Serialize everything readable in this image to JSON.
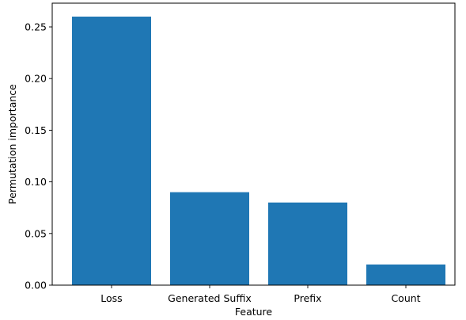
{
  "chart_data": {
    "type": "bar",
    "categories": [
      "Loss",
      "Generated Suffix",
      "Prefix",
      "Count"
    ],
    "values": [
      0.26,
      0.09,
      0.08,
      0.02
    ],
    "xlabel": "Feature",
    "ylabel": "Permutation importance",
    "ylim": [
      0,
      0.273
    ],
    "yticks": [
      "0.00",
      "0.05",
      "0.10",
      "0.15",
      "0.20",
      "0.25"
    ],
    "bar_color": "#1f77b4",
    "grid": false,
    "legend": "none"
  }
}
